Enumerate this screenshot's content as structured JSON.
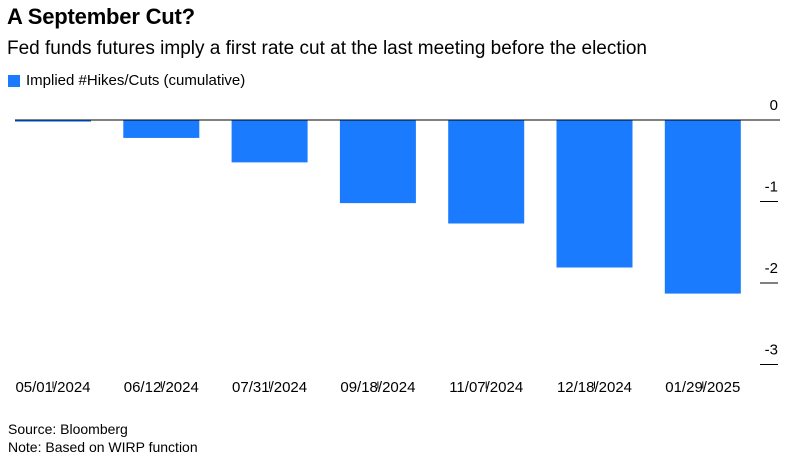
{
  "header": {
    "title": "A September Cut?",
    "subtitle": "Fed funds futures imply a first rate cut at the last meeting before the election"
  },
  "legend": {
    "label": "Implied #Hikes/Cuts (cumulative)",
    "color": "#1a7bff"
  },
  "footer": {
    "source": "Source: Bloomberg",
    "note": "Note: Based on WIRP function"
  },
  "chart_data": {
    "type": "bar",
    "categories": [
      "05/01/2024",
      "06/12/2024",
      "07/31/2024",
      "09/18/2024",
      "11/07/2024",
      "12/18/2024",
      "01/29/2025"
    ],
    "series": [
      {
        "name": "Implied #Hikes/Cuts (cumulative)",
        "values": [
          -0.02,
          -0.22,
          -0.52,
          -1.02,
          -1.27,
          -1.81,
          -2.13
        ],
        "color": "#1a7bff"
      }
    ],
    "y_ticks": [
      0,
      -1,
      -2,
      -3
    ],
    "y_tick_labels": [
      "0",
      "-1",
      "-2",
      "-3"
    ],
    "ylim": [
      -3,
      0
    ],
    "y_axis_side": "right",
    "grid": false,
    "legend_position": "top-left"
  }
}
